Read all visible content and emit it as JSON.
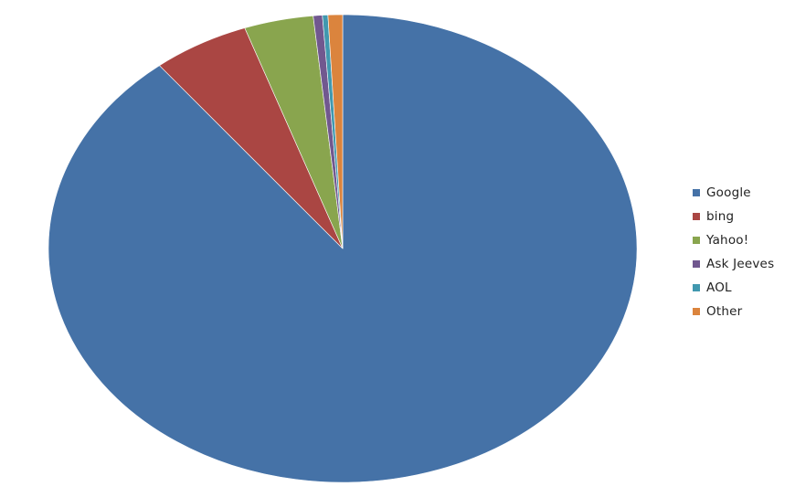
{
  "chart_data": {
    "type": "pie",
    "title": "",
    "categories": [
      "Google",
      "bing",
      "Yahoo!",
      "Ask Jeeves",
      "AOL",
      "Other"
    ],
    "values": [
      89.3,
      5.3,
      3.8,
      0.5,
      0.3,
      0.8
    ],
    "unit": "",
    "start": "12 o'clock",
    "direction": "clockwise",
    "legend_position": "right",
    "colors": [
      "#4572A7",
      "#AA4643",
      "#89A54E",
      "#71588F",
      "#4198AF",
      "#DB843D"
    ]
  }
}
